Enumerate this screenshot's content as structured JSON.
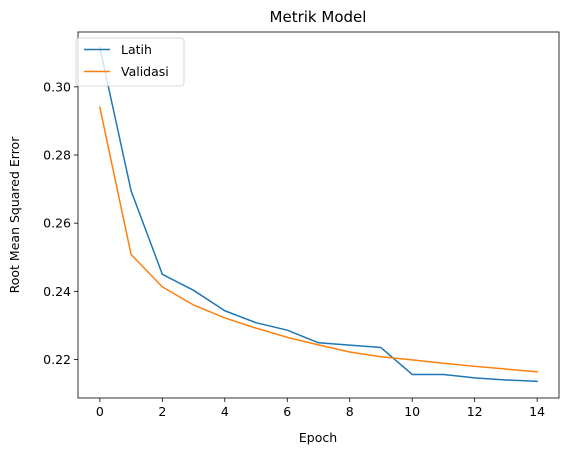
{
  "chart_data": {
    "type": "line",
    "title": "Metrik Model",
    "xlabel": "Epoch",
    "ylabel": "Root Mean Squared Error",
    "x": [
      0,
      1,
      2,
      3,
      4,
      5,
      6,
      7,
      8,
      9,
      10,
      11,
      12,
      13,
      14
    ],
    "xlim": [
      -0.7,
      14.7
    ],
    "ylim": [
      0.2087,
      0.3161
    ],
    "xticks": [
      0,
      2,
      4,
      6,
      8,
      10,
      12,
      14
    ],
    "yticks": [
      0.22,
      0.24,
      0.26,
      0.28,
      0.3
    ],
    "xtick_labels": [
      "0",
      "2",
      "4",
      "6",
      "8",
      "10",
      "12",
      "14"
    ],
    "ytick_labels": [
      "0.22",
      "0.24",
      "0.26",
      "0.28",
      "0.30"
    ],
    "grid": false,
    "legend_position": "upper left",
    "series": [
      {
        "name": "Latih",
        "color": "#1f77b4",
        "values": [
          0.3115,
          0.2695,
          0.245,
          0.2403,
          0.2343,
          0.2308,
          0.2286,
          0.2249,
          0.2242,
          0.2235,
          0.2156,
          0.2156,
          0.2146,
          0.214,
          0.2136
        ]
      },
      {
        "name": "Validasi",
        "color": "#ff7f0e",
        "values": [
          0.294,
          0.2508,
          0.2413,
          0.236,
          0.2322,
          0.2292,
          0.2265,
          0.2243,
          0.2222,
          0.2208,
          0.2199,
          0.2189,
          0.218,
          0.2172,
          0.2164
        ]
      }
    ]
  }
}
